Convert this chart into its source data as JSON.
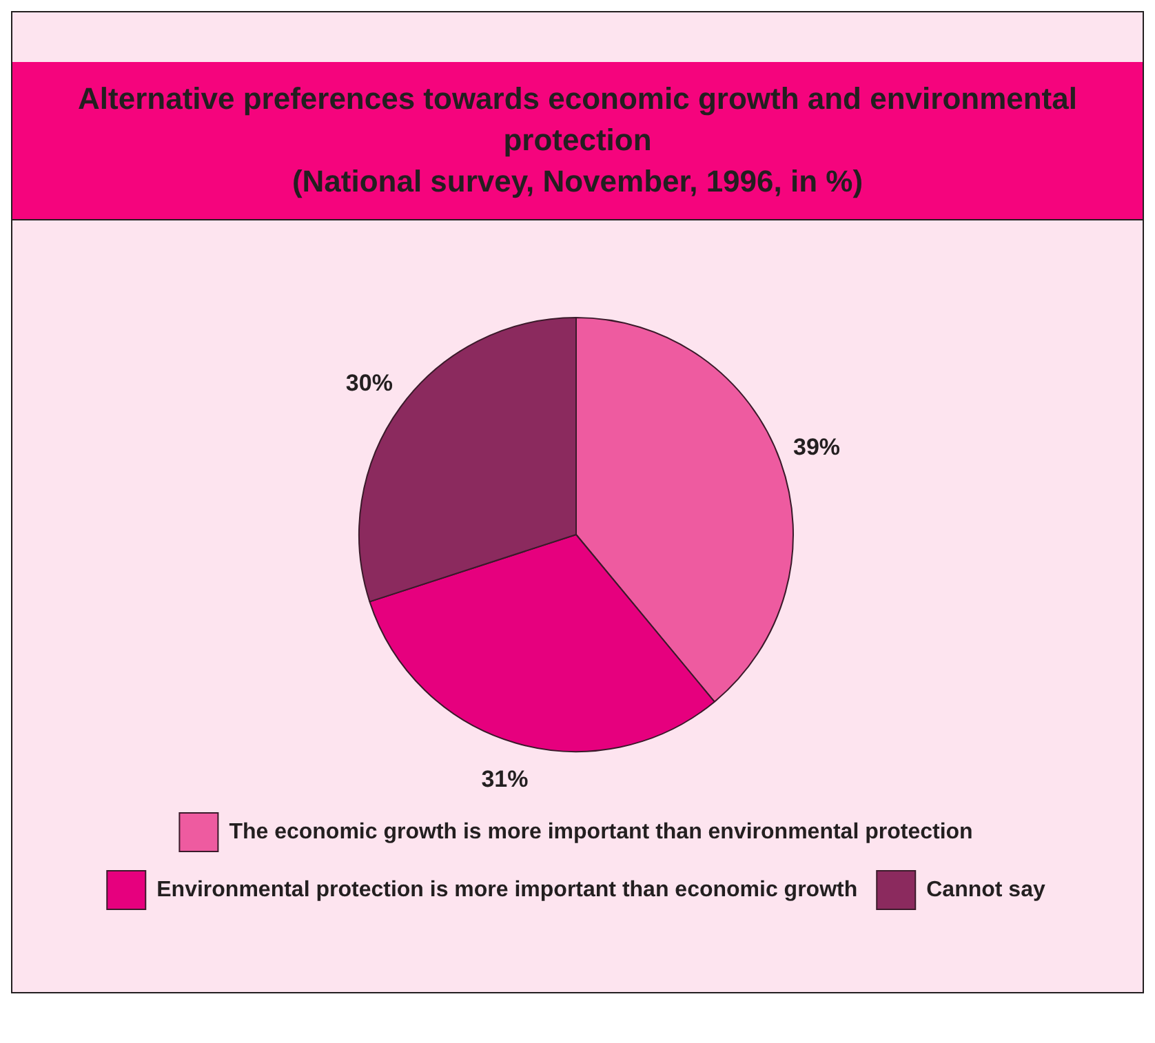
{
  "chart_data": {
    "type": "pie",
    "title": "Alternative preferences towards economic growth and environmental protection",
    "subtitle": "(National survey, November, 1996, in %)",
    "categories": [
      "The economic growth is more important than environmental protection",
      "Environmental protection is more important than economic growth",
      "Cannot say"
    ],
    "values": [
      39,
      31,
      30
    ],
    "colors": [
      "#ee5ba0",
      "#e6007e",
      "#8b2a5e"
    ],
    "value_labels": [
      "39%",
      "31%",
      "30%"
    ],
    "legend": "bottom"
  }
}
